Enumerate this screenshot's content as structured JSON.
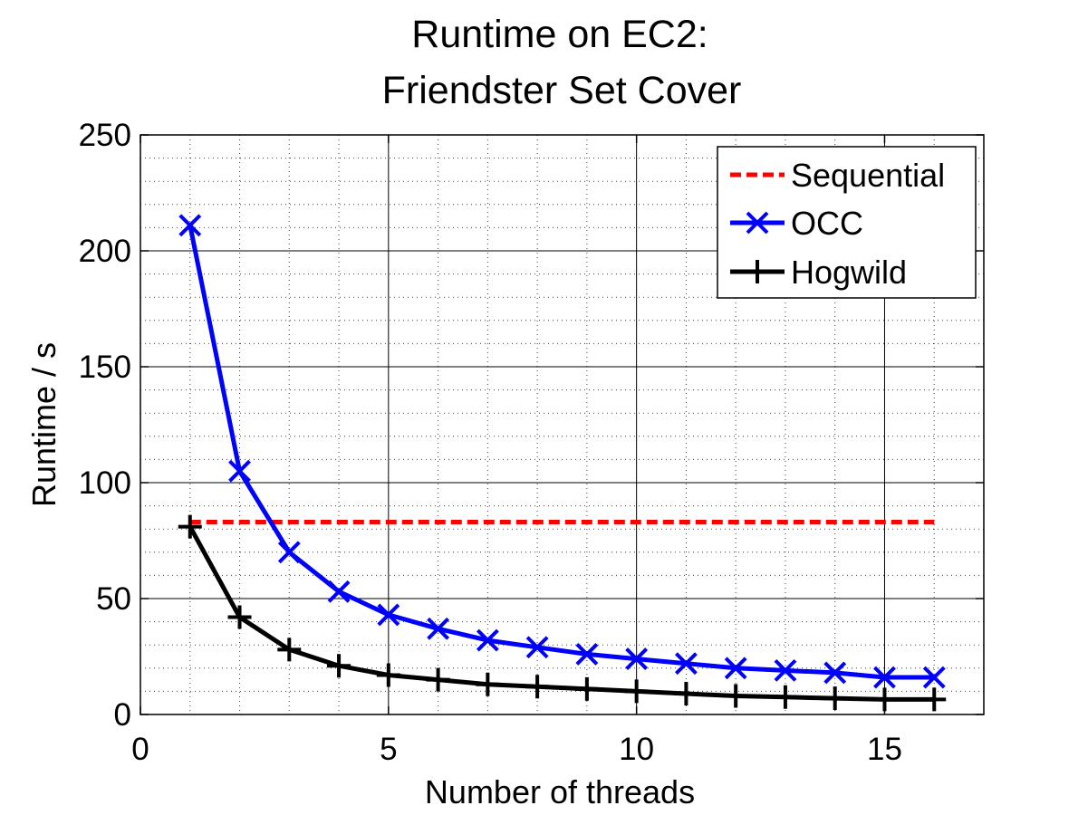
{
  "chart_data": {
    "type": "line",
    "title": [
      "Runtime on EC2:",
      "Friendster Set Cover"
    ],
    "xlabel": "Number of threads",
    "ylabel": "Runtime / s",
    "xlim": [
      0,
      17
    ],
    "ylim": [
      0,
      250
    ],
    "xticks": [
      0,
      5,
      10,
      15
    ],
    "yticks": [
      0,
      50,
      100,
      150,
      200,
      250
    ],
    "x_minor_step": 1,
    "y_minor_step": 10,
    "grid": "major solid, minor dotted",
    "legend_position": "top-right",
    "series": [
      {
        "name": "Sequential",
        "color": "#ff0000",
        "linestyle": "dashed",
        "marker": "none",
        "x": [
          1,
          16
        ],
        "values": [
          83,
          83
        ]
      },
      {
        "name": "OCC",
        "color": "#0000ff",
        "linestyle": "solid",
        "marker": "x",
        "x": [
          1,
          2,
          3,
          4,
          5,
          6,
          7,
          8,
          9,
          10,
          11,
          12,
          13,
          14,
          15,
          16
        ],
        "values": [
          211,
          105,
          70,
          53,
          43,
          37,
          32,
          29,
          26,
          24,
          22,
          20,
          19,
          18,
          16,
          16
        ]
      },
      {
        "name": "Hogwild",
        "color": "#000000",
        "linestyle": "solid",
        "marker": "+",
        "x": [
          1,
          2,
          3,
          4,
          5,
          6,
          7,
          8,
          9,
          10,
          11,
          12,
          13,
          14,
          15,
          16
        ],
        "values": [
          81,
          42,
          28,
          21,
          17,
          15,
          13,
          12,
          11,
          10,
          9,
          8,
          7.5,
          7,
          6.5,
          6.5
        ]
      }
    ]
  }
}
